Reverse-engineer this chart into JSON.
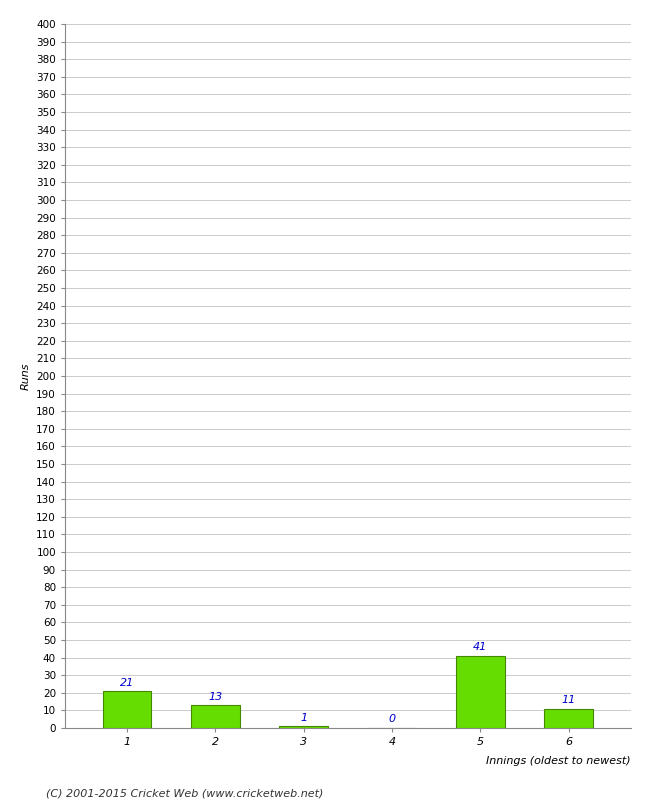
{
  "categories": [
    "1",
    "2",
    "3",
    "4",
    "5",
    "6"
  ],
  "values": [
    21,
    13,
    1,
    0,
    41,
    11
  ],
  "bar_color": "#66dd00",
  "bar_edge_color": "#448800",
  "label_color": "#0000cc",
  "xlabel": "Innings (oldest to newest)",
  "ylabel": "Runs",
  "ylim": [
    0,
    400
  ],
  "ytick_step": 10,
  "background_color": "#ffffff",
  "grid_color": "#cccccc",
  "footer": "(C) 2001-2015 Cricket Web (www.cricketweb.net)"
}
